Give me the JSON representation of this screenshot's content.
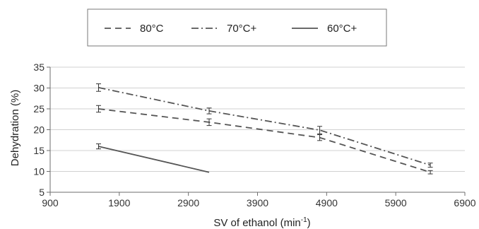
{
  "chart_data": {
    "type": "line",
    "title": "",
    "xlabel": "SV of ethanol (min",
    "xlabel_sup": "-1",
    "xlabel_suffix": ")",
    "ylabel": "Dehydration (%)",
    "xlim": [
      900,
      6900
    ],
    "ylim": [
      5,
      35
    ],
    "xticks": [
      900,
      1900,
      2900,
      3900,
      4900,
      5900,
      6900
    ],
    "yticks": [
      5,
      10,
      15,
      20,
      25,
      30,
      35
    ],
    "grid": "horizontal",
    "legend_position": "top",
    "series": [
      {
        "name": "80°C",
        "style": "dashed",
        "color": "#555555",
        "x": [
          1600,
          3200,
          4800,
          6400
        ],
        "y": [
          25,
          21.8,
          18.1,
          9.8
        ],
        "err": [
          0.8,
          0.8,
          0.7,
          0.4
        ]
      },
      {
        "name": "70°C+",
        "style": "dashdot",
        "color": "#555555",
        "x": [
          1600,
          3200,
          4800,
          6400
        ],
        "y": [
          30.1,
          24.5,
          19.9,
          11.5
        ],
        "err": [
          0.9,
          0.7,
          0.9,
          0.5
        ]
      },
      {
        "name": "60°C+",
        "style": "solid",
        "color": "#555555",
        "x": [
          1600,
          3200
        ],
        "y": [
          16,
          9.8
        ],
        "err": [
          0.6,
          0
        ]
      }
    ]
  }
}
